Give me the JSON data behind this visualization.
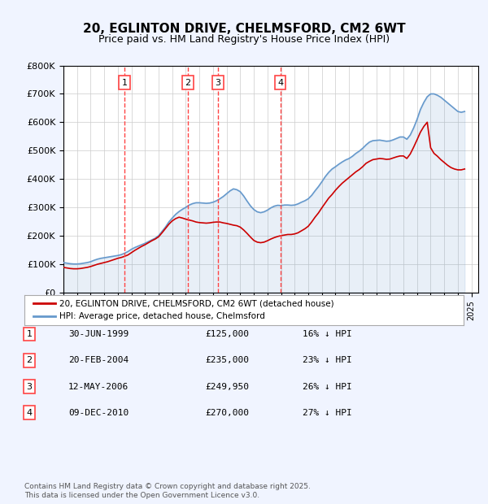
{
  "title": "20, EGLINTON DRIVE, CHELMSFORD, CM2 6WT",
  "subtitle": "Price paid vs. HM Land Registry's House Price Index (HPI)",
  "ylabel_ticks": [
    "£0",
    "£100K",
    "£200K",
    "£300K",
    "£400K",
    "£500K",
    "£600K",
    "£700K",
    "£800K"
  ],
  "ylim": [
    0,
    800000
  ],
  "yticks": [
    0,
    100000,
    200000,
    300000,
    400000,
    500000,
    600000,
    700000,
    800000
  ],
  "xlim_start": 1995.0,
  "xlim_end": 2025.5,
  "bg_color": "#f0f4ff",
  "plot_bg": "#ffffff",
  "grid_color": "#cccccc",
  "red_line_color": "#cc0000",
  "blue_line_color": "#6699cc",
  "vline_color": "#ff4444",
  "transactions": [
    {
      "num": 1,
      "date": "30-JUN-1999",
      "price": 125000,
      "x_year": 1999.49
    },
    {
      "num": 2,
      "date": "20-FEB-2004",
      "price": 235000,
      "x_year": 2004.13
    },
    {
      "num": 3,
      "date": "12-MAY-2006",
      "price": 249950,
      "x_year": 2006.36
    },
    {
      "num": 4,
      "date": "09-DEC-2010",
      "price": 270000,
      "x_year": 2010.94
    }
  ],
  "table_rows": [
    {
      "num": 1,
      "date": "30-JUN-1999",
      "price": "£125,000",
      "hpi": "16% ↓ HPI"
    },
    {
      "num": 2,
      "date": "20-FEB-2004",
      "price": "£235,000",
      "hpi": "23% ↓ HPI"
    },
    {
      "num": 3,
      "date": "12-MAY-2006",
      "price": "£249,950",
      "hpi": "26% ↓ HPI"
    },
    {
      "num": 4,
      "date": "09-DEC-2010",
      "price": "£270,000",
      "hpi": "27% ↓ HPI"
    }
  ],
  "legend_red": "20, EGLINTON DRIVE, CHELMSFORD, CM2 6WT (detached house)",
  "legend_blue": "HPI: Average price, detached house, Chelmsford",
  "footer": "Contains HM Land Registry data © Crown copyright and database right 2025.\nThis data is licensed under the Open Government Licence v3.0.",
  "hpi_data": {
    "years": [
      1995.0,
      1995.25,
      1995.5,
      1995.75,
      1996.0,
      1996.25,
      1996.5,
      1996.75,
      1997.0,
      1997.25,
      1997.5,
      1997.75,
      1998.0,
      1998.25,
      1998.5,
      1998.75,
      1999.0,
      1999.25,
      1999.5,
      1999.75,
      2000.0,
      2000.25,
      2000.5,
      2000.75,
      2001.0,
      2001.25,
      2001.5,
      2001.75,
      2002.0,
      2002.25,
      2002.5,
      2002.75,
      2003.0,
      2003.25,
      2003.5,
      2003.75,
      2004.0,
      2004.25,
      2004.5,
      2004.75,
      2005.0,
      2005.25,
      2005.5,
      2005.75,
      2006.0,
      2006.25,
      2006.5,
      2006.75,
      2007.0,
      2007.25,
      2007.5,
      2007.75,
      2008.0,
      2008.25,
      2008.5,
      2008.75,
      2009.0,
      2009.25,
      2009.5,
      2009.75,
      2010.0,
      2010.25,
      2010.5,
      2010.75,
      2011.0,
      2011.25,
      2011.5,
      2011.75,
      2012.0,
      2012.25,
      2012.5,
      2012.75,
      2013.0,
      2013.25,
      2013.5,
      2013.75,
      2014.0,
      2014.25,
      2014.5,
      2014.75,
      2015.0,
      2015.25,
      2015.5,
      2015.75,
      2016.0,
      2016.25,
      2016.5,
      2016.75,
      2017.0,
      2017.25,
      2017.5,
      2017.75,
      2018.0,
      2018.25,
      2018.5,
      2018.75,
      2019.0,
      2019.25,
      2019.5,
      2019.75,
      2020.0,
      2020.25,
      2020.5,
      2020.75,
      2021.0,
      2021.25,
      2021.5,
      2021.75,
      2022.0,
      2022.25,
      2022.5,
      2022.75,
      2023.0,
      2023.25,
      2023.5,
      2023.75,
      2024.0,
      2024.25,
      2024.5
    ],
    "values": [
      105000,
      103000,
      101000,
      100000,
      100000,
      101000,
      103000,
      105000,
      108000,
      113000,
      117000,
      120000,
      122000,
      124000,
      126000,
      128000,
      130000,
      133000,
      138000,
      144000,
      152000,
      158000,
      163000,
      168000,
      173000,
      179000,
      185000,
      191000,
      200000,
      215000,
      230000,
      248000,
      262000,
      275000,
      285000,
      293000,
      300000,
      308000,
      313000,
      316000,
      316000,
      315000,
      314000,
      315000,
      318000,
      323000,
      330000,
      338000,
      348000,
      358000,
      365000,
      362000,
      355000,
      340000,
      322000,
      305000,
      292000,
      284000,
      281000,
      284000,
      290000,
      298000,
      304000,
      307000,
      306000,
      308000,
      308000,
      307000,
      308000,
      312000,
      318000,
      323000,
      330000,
      342000,
      358000,
      373000,
      390000,
      408000,
      423000,
      435000,
      443000,
      452000,
      460000,
      467000,
      472000,
      480000,
      490000,
      498000,
      508000,
      520000,
      530000,
      535000,
      536000,
      537000,
      535000,
      533000,
      534000,
      538000,
      543000,
      548000,
      548000,
      540000,
      555000,
      580000,
      610000,
      645000,
      670000,
      690000,
      700000,
      700000,
      695000,
      688000,
      678000,
      668000,
      658000,
      648000,
      638000,
      635000,
      638000
    ]
  },
  "price_data": {
    "years": [
      1995.0,
      1995.25,
      1995.5,
      1995.75,
      1996.0,
      1996.25,
      1996.5,
      1996.75,
      1997.0,
      1997.25,
      1997.5,
      1997.75,
      1998.0,
      1998.25,
      1998.5,
      1998.75,
      1999.0,
      1999.25,
      1999.5,
      1999.75,
      2000.0,
      2000.25,
      2000.5,
      2000.75,
      2001.0,
      2001.25,
      2001.5,
      2001.75,
      2002.0,
      2002.25,
      2002.5,
      2002.75,
      2003.0,
      2003.25,
      2003.5,
      2003.75,
      2004.0,
      2004.25,
      2004.5,
      2004.75,
      2005.0,
      2005.25,
      2005.5,
      2005.75,
      2006.0,
      2006.25,
      2006.5,
      2006.75,
      2007.0,
      2007.25,
      2007.5,
      2007.75,
      2008.0,
      2008.25,
      2008.5,
      2008.75,
      2009.0,
      2009.25,
      2009.5,
      2009.75,
      2010.0,
      2010.25,
      2010.5,
      2010.75,
      2011.0,
      2011.25,
      2011.5,
      2011.75,
      2012.0,
      2012.25,
      2012.5,
      2012.75,
      2013.0,
      2013.25,
      2013.5,
      2013.75,
      2014.0,
      2014.25,
      2014.5,
      2014.75,
      2015.0,
      2015.25,
      2015.5,
      2015.75,
      2016.0,
      2016.25,
      2016.5,
      2016.75,
      2017.0,
      2017.25,
      2017.5,
      2017.75,
      2018.0,
      2018.25,
      2018.5,
      2018.75,
      2019.0,
      2019.25,
      2019.5,
      2019.75,
      2020.0,
      2020.25,
      2020.5,
      2020.75,
      2021.0,
      2021.25,
      2021.5,
      2021.75,
      2022.0,
      2022.25,
      2022.5,
      2022.75,
      2023.0,
      2023.25,
      2023.5,
      2023.75,
      2024.0,
      2024.25,
      2024.5
    ],
    "values": [
      88000,
      86000,
      84000,
      83000,
      83000,
      84000,
      86000,
      88000,
      91000,
      95000,
      99000,
      102000,
      105000,
      108000,
      112000,
      116000,
      120000,
      123000,
      127000,
      132000,
      140000,
      148000,
      155000,
      162000,
      168000,
      175000,
      182000,
      188000,
      196000,
      210000,
      225000,
      240000,
      252000,
      260000,
      265000,
      262000,
      258000,
      255000,
      252000,
      248000,
      246000,
      245000,
      244000,
      245000,
      247000,
      248000,
      248000,
      245000,
      243000,
      240000,
      237000,
      235000,
      230000,
      220000,
      208000,
      195000,
      183000,
      177000,
      175000,
      177000,
      182000,
      188000,
      193000,
      197000,
      200000,
      202000,
      204000,
      204000,
      206000,
      210000,
      217000,
      224000,
      233000,
      248000,
      265000,
      280000,
      298000,
      315000,
      332000,
      345000,
      360000,
      373000,
      385000,
      395000,
      405000,
      415000,
      425000,
      433000,
      443000,
      455000,
      462000,
      468000,
      470000,
      472000,
      471000,
      469000,
      470000,
      474000,
      478000,
      481000,
      481000,
      472000,
      488000,
      512000,
      538000,
      565000,
      585000,
      600000,
      510000,
      490000,
      480000,
      468000,
      458000,
      448000,
      440000,
      435000,
      432000,
      432000,
      435000
    ]
  }
}
